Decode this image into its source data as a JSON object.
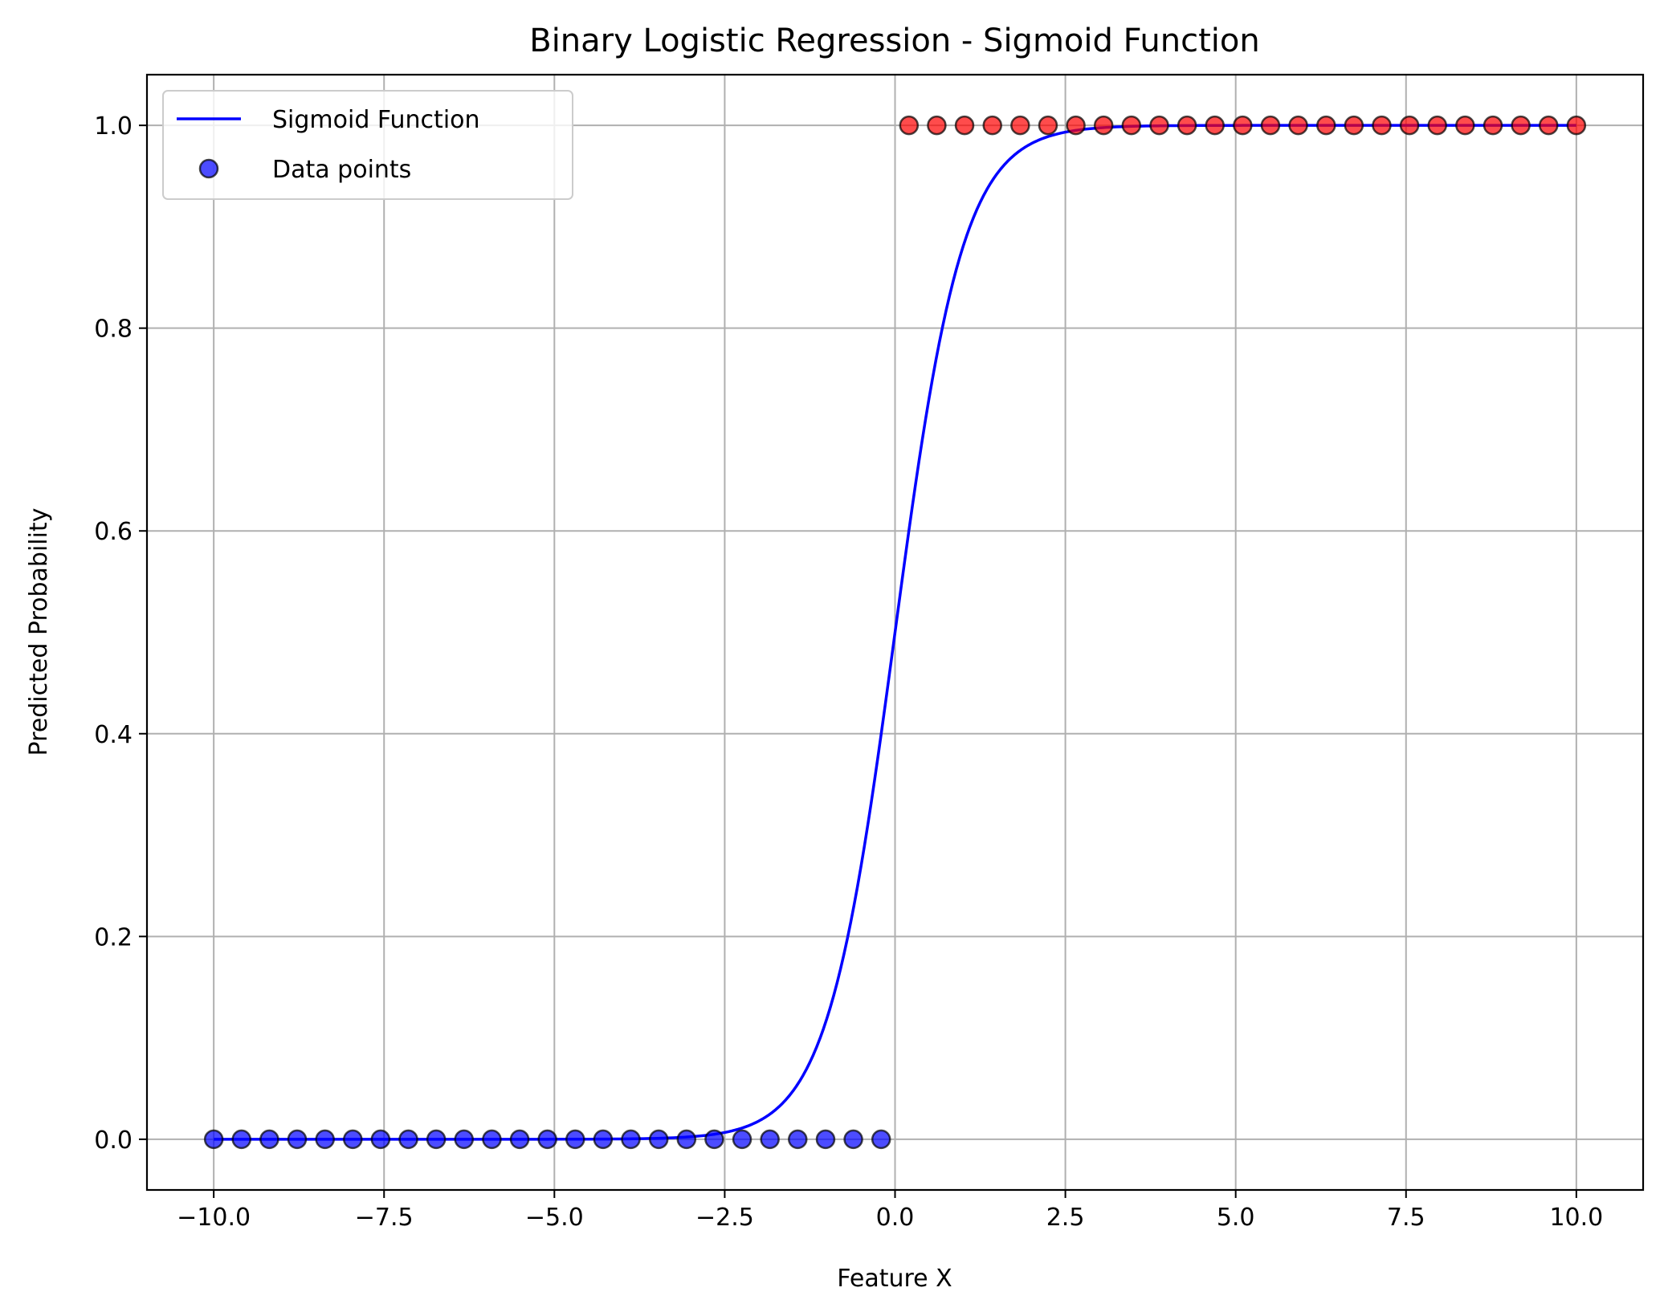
{
  "chart_data": {
    "type": "line",
    "title": "Binary Logistic Regression - Sigmoid Function",
    "xlabel": "Feature X",
    "ylabel": "Predicted Probability",
    "xlim": [
      -10.98,
      10.98
    ],
    "ylim": [
      -0.05,
      1.05
    ],
    "grid": true,
    "legend_position": "upper left",
    "xticks": [
      -10.0,
      -7.5,
      -5.0,
      -2.5,
      0.0,
      2.5,
      5.0,
      7.5,
      10.0
    ],
    "xtick_labels": [
      "−10.0",
      "−7.5",
      "−5.0",
      "−2.5",
      "0.0",
      "2.5",
      "5.0",
      "7.5",
      "10.0"
    ],
    "yticks": [
      0.0,
      0.2,
      0.4,
      0.6,
      0.8,
      1.0
    ],
    "ytick_labels": [
      "0.0",
      "0.2",
      "0.4",
      "0.6",
      "0.8",
      "1.0"
    ],
    "series": [
      {
        "name": "Sigmoid Function",
        "kind": "line",
        "color": "#0000ff",
        "function": "1/(1+exp(-2x))",
        "x": [
          -10,
          -5,
          -4,
          -3,
          -2.5,
          -2,
          -1.5,
          -1,
          -0.5,
          0,
          0.5,
          1,
          1.5,
          2,
          2.5,
          3,
          4,
          5,
          10
        ],
        "y": [
          0.0,
          0.0,
          0.0003,
          0.0025,
          0.0067,
          0.018,
          0.047,
          0.119,
          0.269,
          0.5,
          0.731,
          0.881,
          0.953,
          0.982,
          0.993,
          0.9975,
          0.9997,
          1.0,
          1.0
        ]
      },
      {
        "name": "Data points",
        "kind": "scatter",
        "color": "#0000ff",
        "edge_color": "#000000",
        "alpha": 0.7,
        "x": [
          -10.0,
          -9.592,
          -9.184,
          -8.776,
          -8.367,
          -7.959,
          -7.551,
          -7.143,
          -6.735,
          -6.327,
          -5.918,
          -5.51,
          -5.102,
          -4.694,
          -4.286,
          -3.878,
          -3.469,
          -3.061,
          -2.653,
          -2.245,
          -1.837,
          -1.429,
          -1.02,
          -0.612,
          -0.204
        ],
        "y": [
          0,
          0,
          0,
          0,
          0,
          0,
          0,
          0,
          0,
          0,
          0,
          0,
          0,
          0,
          0,
          0,
          0,
          0,
          0,
          0,
          0,
          0,
          0,
          0,
          0
        ]
      },
      {
        "kind": "scatter",
        "color": "#ff0000",
        "edge_color": "#000000",
        "alpha": 0.7,
        "x": [
          0.204,
          0.612,
          1.02,
          1.429,
          1.837,
          2.245,
          2.653,
          3.061,
          3.469,
          3.878,
          4.286,
          4.694,
          5.102,
          5.51,
          5.918,
          6.327,
          6.735,
          7.143,
          7.551,
          7.959,
          8.367,
          8.776,
          9.184,
          9.592,
          10.0
        ],
        "y": [
          1,
          1,
          1,
          1,
          1,
          1,
          1,
          1,
          1,
          1,
          1,
          1,
          1,
          1,
          1,
          1,
          1,
          1,
          1,
          1,
          1,
          1,
          1,
          1,
          1
        ]
      }
    ],
    "legend": [
      {
        "label": "Sigmoid Function",
        "marker": "line",
        "color": "#0000ff"
      },
      {
        "label": "Data points",
        "marker": "circle",
        "color": "#0000ff"
      }
    ]
  }
}
